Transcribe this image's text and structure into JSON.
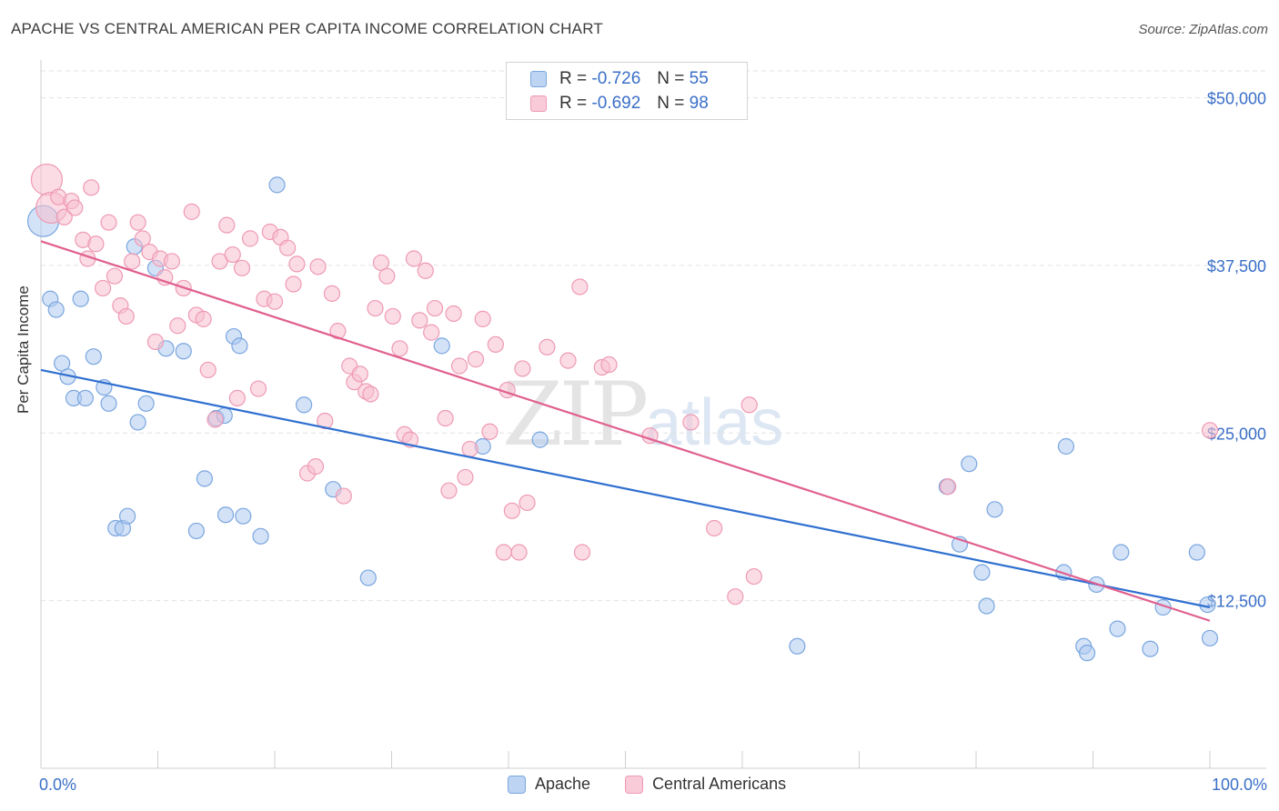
{
  "title": "APACHE VS CENTRAL AMERICAN PER CAPITA INCOME CORRELATION CHART",
  "source": "Source: ZipAtlas.com",
  "watermark": {
    "zip": "ZIP",
    "atlas": "atlas"
  },
  "legend_top": [
    {
      "r_label": "R =",
      "r_value": "-0.726",
      "n_label": "N =",
      "n_value": "55"
    },
    {
      "r_label": "R =",
      "r_value": "-0.692",
      "n_label": "N =",
      "n_value": "98"
    }
  ],
  "legend_bottom": [
    "Apache",
    "Central Americans"
  ],
  "colors": {
    "apache_fill": "#aecbf0",
    "apache_stroke": "#7aa6df",
    "apache_line": "#2f6fd0",
    "central_fill": "#f8c0d0",
    "central_stroke": "#ee9ab4",
    "central_line": "#e0608f",
    "axis_text": "#3a6fc8",
    "grid": "#e2e2e2"
  },
  "chart_data": {
    "type": "scatter",
    "title": "APACHE VS CENTRAL AMERICAN PER CAPITA INCOME CORRELATION CHART",
    "xlabel": "",
    "ylabel": "Per Capita Income",
    "xlim": [
      0,
      100
    ],
    "ylim": [
      0,
      52000
    ],
    "x_tick_labels": [
      "0.0%",
      "100.0%"
    ],
    "y_ticks": [
      12500,
      25000,
      37500,
      50000
    ],
    "y_tick_labels": [
      "$12,500",
      "$25,000",
      "$37,500",
      "$50,000"
    ],
    "grid": true,
    "legend_position": "top-center",
    "series": [
      {
        "name": "Apache",
        "r": -0.726,
        "n": 55,
        "trend": {
          "x": [
            0,
            100
          ],
          "y": [
            29700,
            12000
          ]
        },
        "points": [
          {
            "x": 0.2,
            "y": 40800,
            "large": true
          },
          {
            "x": 0.8,
            "y": 35000
          },
          {
            "x": 1.3,
            "y": 34200
          },
          {
            "x": 1.8,
            "y": 30200
          },
          {
            "x": 2.3,
            "y": 29200
          },
          {
            "x": 2.8,
            "y": 27600
          },
          {
            "x": 3.4,
            "y": 35000
          },
          {
            "x": 3.8,
            "y": 27600
          },
          {
            "x": 4.5,
            "y": 30700
          },
          {
            "x": 5.4,
            "y": 28400
          },
          {
            "x": 5.8,
            "y": 27200
          },
          {
            "x": 6.4,
            "y": 17900
          },
          {
            "x": 7.0,
            "y": 17900
          },
          {
            "x": 7.4,
            "y": 18800
          },
          {
            "x": 8.0,
            "y": 38900
          },
          {
            "x": 8.3,
            "y": 25800
          },
          {
            "x": 9.0,
            "y": 27200
          },
          {
            "x": 9.8,
            "y": 37300
          },
          {
            "x": 10.7,
            "y": 31300
          },
          {
            "x": 12.2,
            "y": 31100
          },
          {
            "x": 13.3,
            "y": 17700
          },
          {
            "x": 14.0,
            "y": 21600
          },
          {
            "x": 15.0,
            "y": 26100
          },
          {
            "x": 15.7,
            "y": 26300
          },
          {
            "x": 15.8,
            "y": 18900
          },
          {
            "x": 16.5,
            "y": 32200
          },
          {
            "x": 17.0,
            "y": 31500
          },
          {
            "x": 17.3,
            "y": 18800
          },
          {
            "x": 18.8,
            "y": 17300
          },
          {
            "x": 20.2,
            "y": 43500
          },
          {
            "x": 22.5,
            "y": 27100
          },
          {
            "x": 25.0,
            "y": 20800
          },
          {
            "x": 28.0,
            "y": 14200
          },
          {
            "x": 34.3,
            "y": 31500
          },
          {
            "x": 37.8,
            "y": 24000
          },
          {
            "x": 42.7,
            "y": 24500
          },
          {
            "x": 64.7,
            "y": 9100
          },
          {
            "x": 77.5,
            "y": 21000
          },
          {
            "x": 78.6,
            "y": 16700
          },
          {
            "x": 79.4,
            "y": 22700
          },
          {
            "x": 80.5,
            "y": 14600
          },
          {
            "x": 80.9,
            "y": 12100
          },
          {
            "x": 81.6,
            "y": 19300
          },
          {
            "x": 87.5,
            "y": 14600
          },
          {
            "x": 87.7,
            "y": 24000
          },
          {
            "x": 89.2,
            "y": 9100
          },
          {
            "x": 89.5,
            "y": 8600
          },
          {
            "x": 90.3,
            "y": 13700
          },
          {
            "x": 92.1,
            "y": 10400
          },
          {
            "x": 92.4,
            "y": 16100
          },
          {
            "x": 94.9,
            "y": 8900
          },
          {
            "x": 96.0,
            "y": 12000
          },
          {
            "x": 98.9,
            "y": 16100
          },
          {
            "x": 100.0,
            "y": 9700
          },
          {
            "x": 99.8,
            "y": 12200
          }
        ]
      },
      {
        "name": "Central Americans",
        "r": -0.692,
        "n": 98,
        "trend": {
          "x": [
            0,
            100
          ],
          "y": [
            39300,
            11000
          ]
        },
        "points": [
          {
            "x": 0.5,
            "y": 43900,
            "large": true
          },
          {
            "x": 0.9,
            "y": 41800,
            "large": true
          },
          {
            "x": 1.5,
            "y": 42600
          },
          {
            "x": 2.0,
            "y": 41100
          },
          {
            "x": 2.6,
            "y": 42300
          },
          {
            "x": 2.9,
            "y": 41800
          },
          {
            "x": 3.6,
            "y": 39400
          },
          {
            "x": 4.0,
            "y": 38000
          },
          {
            "x": 4.3,
            "y": 43300
          },
          {
            "x": 4.7,
            "y": 39100
          },
          {
            "x": 5.3,
            "y": 35800
          },
          {
            "x": 5.8,
            "y": 40700
          },
          {
            "x": 6.3,
            "y": 36700
          },
          {
            "x": 6.8,
            "y": 34500
          },
          {
            "x": 7.3,
            "y": 33700
          },
          {
            "x": 7.8,
            "y": 37800
          },
          {
            "x": 8.3,
            "y": 40700
          },
          {
            "x": 8.7,
            "y": 39500
          },
          {
            "x": 9.3,
            "y": 38500
          },
          {
            "x": 9.8,
            "y": 31800
          },
          {
            "x": 10.2,
            "y": 38000
          },
          {
            "x": 10.6,
            "y": 36600
          },
          {
            "x": 11.2,
            "y": 37800
          },
          {
            "x": 11.7,
            "y": 33000
          },
          {
            "x": 12.2,
            "y": 35800
          },
          {
            "x": 12.9,
            "y": 41500
          },
          {
            "x": 13.3,
            "y": 33800
          },
          {
            "x": 13.9,
            "y": 33500
          },
          {
            "x": 14.3,
            "y": 29700
          },
          {
            "x": 14.9,
            "y": 26000
          },
          {
            "x": 15.3,
            "y": 37800
          },
          {
            "x": 15.9,
            "y": 40500
          },
          {
            "x": 16.4,
            "y": 38300
          },
          {
            "x": 16.8,
            "y": 27600
          },
          {
            "x": 17.2,
            "y": 37300
          },
          {
            "x": 17.9,
            "y": 39500
          },
          {
            "x": 18.6,
            "y": 28300
          },
          {
            "x": 19.1,
            "y": 35000
          },
          {
            "x": 19.6,
            "y": 40000
          },
          {
            "x": 20.0,
            "y": 34800
          },
          {
            "x": 20.5,
            "y": 39600
          },
          {
            "x": 21.1,
            "y": 38800
          },
          {
            "x": 21.6,
            "y": 36100
          },
          {
            "x": 21.9,
            "y": 37600
          },
          {
            "x": 22.8,
            "y": 22000
          },
          {
            "x": 23.5,
            "y": 22500
          },
          {
            "x": 23.7,
            "y": 37400
          },
          {
            "x": 24.3,
            "y": 25900
          },
          {
            "x": 24.9,
            "y": 35400
          },
          {
            "x": 25.4,
            "y": 32600
          },
          {
            "x": 25.9,
            "y": 20300
          },
          {
            "x": 26.4,
            "y": 30000
          },
          {
            "x": 26.8,
            "y": 28800
          },
          {
            "x": 27.3,
            "y": 29400
          },
          {
            "x": 27.8,
            "y": 28100
          },
          {
            "x": 28.2,
            "y": 27900
          },
          {
            "x": 28.6,
            "y": 34300
          },
          {
            "x": 29.1,
            "y": 37700
          },
          {
            "x": 29.6,
            "y": 36700
          },
          {
            "x": 30.1,
            "y": 33700
          },
          {
            "x": 30.7,
            "y": 31300
          },
          {
            "x": 31.1,
            "y": 24900
          },
          {
            "x": 31.6,
            "y": 24500
          },
          {
            "x": 31.9,
            "y": 38000
          },
          {
            "x": 32.4,
            "y": 33400
          },
          {
            "x": 32.9,
            "y": 37100
          },
          {
            "x": 33.4,
            "y": 32500
          },
          {
            "x": 33.7,
            "y": 34300
          },
          {
            "x": 34.6,
            "y": 26100
          },
          {
            "x": 34.9,
            "y": 20700
          },
          {
            "x": 35.3,
            "y": 33900
          },
          {
            "x": 35.8,
            "y": 30000
          },
          {
            "x": 36.3,
            "y": 21700
          },
          {
            "x": 36.7,
            "y": 23800
          },
          {
            "x": 37.2,
            "y": 30500
          },
          {
            "x": 37.8,
            "y": 33500
          },
          {
            "x": 38.4,
            "y": 25100
          },
          {
            "x": 38.9,
            "y": 31600
          },
          {
            "x": 39.6,
            "y": 16100
          },
          {
            "x": 39.9,
            "y": 28200
          },
          {
            "x": 40.3,
            "y": 19200
          },
          {
            "x": 40.9,
            "y": 16100
          },
          {
            "x": 41.2,
            "y": 29800
          },
          {
            "x": 41.6,
            "y": 19800
          },
          {
            "x": 43.3,
            "y": 31400
          },
          {
            "x": 45.1,
            "y": 30400
          },
          {
            "x": 46.3,
            "y": 16100
          },
          {
            "x": 46.1,
            "y": 35900
          },
          {
            "x": 48.0,
            "y": 29900
          },
          {
            "x": 48.6,
            "y": 30100
          },
          {
            "x": 52.1,
            "y": 24800
          },
          {
            "x": 55.6,
            "y": 25800
          },
          {
            "x": 57.6,
            "y": 17900
          },
          {
            "x": 59.4,
            "y": 12800
          },
          {
            "x": 60.6,
            "y": 27100
          },
          {
            "x": 61.0,
            "y": 14300
          },
          {
            "x": 77.6,
            "y": 21000
          },
          {
            "x": 100.0,
            "y": 25200
          }
        ]
      }
    ]
  }
}
